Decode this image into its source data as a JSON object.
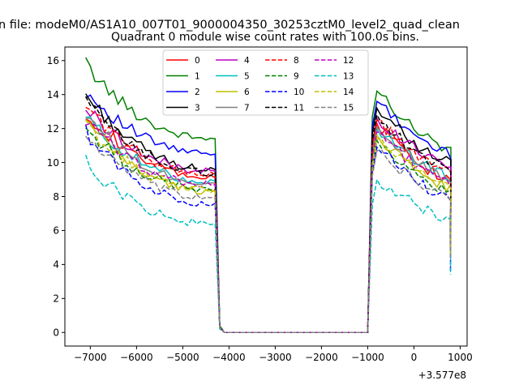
{
  "chart_data": {
    "type": "line",
    "suptitle": "n file: modeM0/AS1A10_007T01_9000004350_30253cztM0_level2_quad_clean",
    "title": "Quadrant 0 module wise count rates with 100.0s bins.",
    "xlabel": "",
    "ylabel": "",
    "x_offset_label": "+3.577e8",
    "xlim": [
      -7550,
      1150
    ],
    "ylim": [
      -0.8,
      16.8
    ],
    "xticks": [
      -7000,
      -6000,
      -5000,
      -4000,
      -3000,
      -2000,
      -1000,
      0,
      1000
    ],
    "yticks": [
      0,
      2,
      4,
      6,
      8,
      10,
      12,
      14,
      16
    ],
    "grid": false,
    "legend": {
      "placement": "upper-center",
      "columns": 4
    },
    "x_segments": {
      "pre": {
        "start": -7100,
        "end": -4300,
        "step": 100
      },
      "gap": {
        "start": -4200,
        "end": -1000,
        "step": 100,
        "value": 0
      },
      "post": {
        "start": -900,
        "end": 750,
        "step": 100
      }
    },
    "series": [
      {
        "name": "0",
        "color": "#ff0000",
        "dash": "solid",
        "pre_start": 13.0,
        "pre_end": 9.1,
        "post_peak": 12.3,
        "post_end": 9.0,
        "final": 5.5,
        "transient": 0.3
      },
      {
        "name": "1",
        "color": "#008000",
        "dash": "solid",
        "pre_start": 15.8,
        "pre_end": 11.4,
        "post_peak": 14.2,
        "post_end": 10.8,
        "final": 6.0,
        "transient": 0.4
      },
      {
        "name": "2",
        "color": "#0000ff",
        "dash": "solid",
        "pre_start": 14.2,
        "pre_end": 10.5,
        "post_peak": 13.6,
        "post_end": 10.5,
        "final": 5.0,
        "transient": 0.3
      },
      {
        "name": "3",
        "color": "#000000",
        "dash": "solid",
        "pre_start": 14.0,
        "pre_end": 9.6,
        "post_peak": 13.2,
        "post_end": 10.0,
        "final": 5.2,
        "transient": 0.3
      },
      {
        "name": "4",
        "color": "#bf00bf",
        "dash": "solid",
        "pre_start": 13.2,
        "pre_end": 9.5,
        "post_peak": 12.6,
        "post_end": 9.9,
        "final": 5.6,
        "transient": 0.3
      },
      {
        "name": "5",
        "color": "#00bfbf",
        "dash": "solid",
        "pre_start": 12.7,
        "pre_end": 8.9,
        "post_peak": 12.0,
        "post_end": 9.2,
        "final": 5.0,
        "transient": 0.3
      },
      {
        "name": "6",
        "color": "#bfbf00",
        "dash": "solid",
        "pre_start": 12.4,
        "pre_end": 8.3,
        "post_peak": 11.6,
        "post_end": 8.5,
        "final": 4.6,
        "transient": 0.3
      },
      {
        "name": "7",
        "color": "#808080",
        "dash": "solid",
        "pre_start": 12.9,
        "pre_end": 8.8,
        "post_peak": 12.1,
        "post_end": 9.1,
        "final": 5.0,
        "transient": 0.3
      },
      {
        "name": "8",
        "color": "#ff0000",
        "dash": "dashed",
        "pre_start": 13.4,
        "pre_end": 9.3,
        "post_peak": 12.5,
        "post_end": 9.4,
        "final": 5.2,
        "transient": 0.3
      },
      {
        "name": "9",
        "color": "#008000",
        "dash": "dashed",
        "pre_start": 12.0,
        "pre_end": 8.4,
        "post_peak": 11.3,
        "post_end": 8.2,
        "final": 4.8,
        "transient": 0.3
      },
      {
        "name": "10",
        "color": "#0000ff",
        "dash": "dashed",
        "pre_start": 11.8,
        "pre_end": 7.6,
        "post_peak": 10.9,
        "post_end": 7.9,
        "final": 3.6,
        "transient": 0.3
      },
      {
        "name": "11",
        "color": "#000000",
        "dash": "dashed",
        "pre_start": 13.6,
        "pre_end": 9.4,
        "post_peak": 12.8,
        "post_end": 9.5,
        "final": 5.4,
        "transient": 0.3
      },
      {
        "name": "12",
        "color": "#bf00bf",
        "dash": "dashed",
        "pre_start": 12.5,
        "pre_end": 8.7,
        "post_peak": 11.8,
        "post_end": 8.8,
        "final": 4.9,
        "transient": 0.3
      },
      {
        "name": "13",
        "color": "#00bfbf",
        "dash": "dashed",
        "pre_start": 10.0,
        "pre_end": 6.4,
        "post_peak": 9.0,
        "post_end": 6.7,
        "final": 3.4,
        "transient": 0.2
      },
      {
        "name": "14",
        "color": "#bfbf00",
        "dash": "dashed",
        "pre_start": 12.2,
        "pre_end": 8.4,
        "post_peak": 11.4,
        "post_end": 8.6,
        "final": 4.7,
        "transient": 0.3
      },
      {
        "name": "15",
        "color": "#808080",
        "dash": "dashed",
        "pre_start": 11.6,
        "pre_end": 7.9,
        "post_peak": 10.7,
        "post_end": 8.0,
        "final": 4.4,
        "transient": 0.3
      }
    ]
  }
}
